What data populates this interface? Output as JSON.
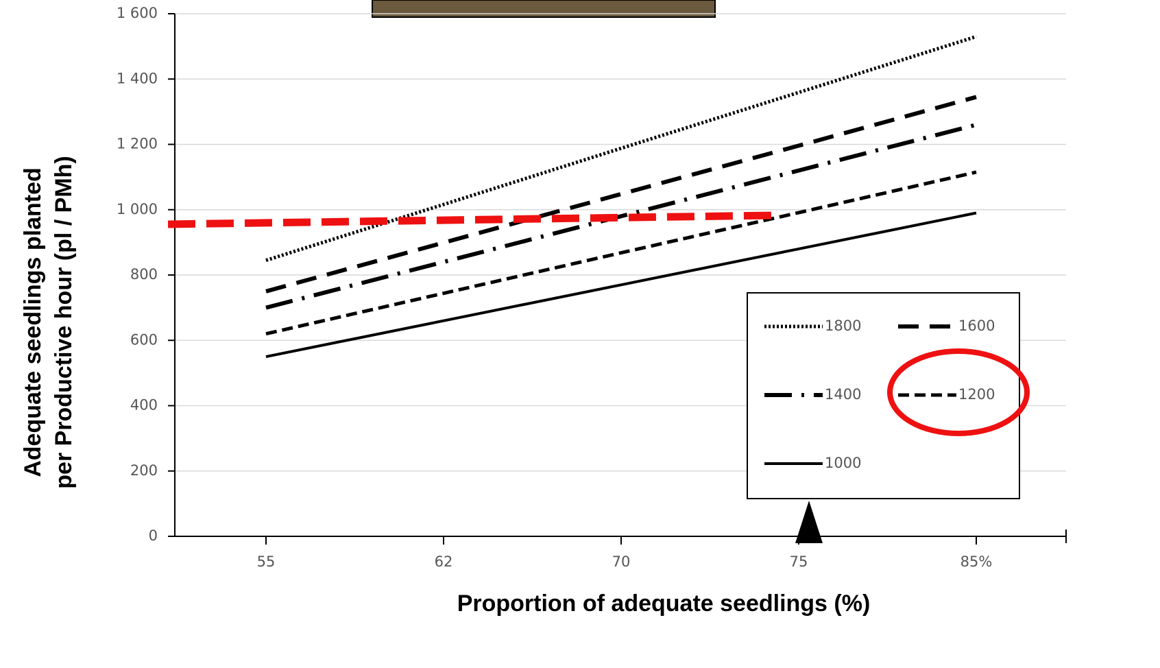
{
  "chart_data": {
    "type": "line",
    "x_label": "Proportion of adequate seedlings (%)",
    "y_label": [
      "Adequate seedlings planted",
      "per Productive hour (pl / PMh)"
    ],
    "categories": [
      "55",
      "62",
      "70",
      "75",
      "85%"
    ],
    "ylim": [
      0,
      1600
    ],
    "yticks": [
      0,
      200,
      400,
      600,
      800,
      {
        "value": 1000,
        "label": "1 000"
      },
      {
        "value": 1200,
        "label": "1 200"
      },
      {
        "value": 1400,
        "label": "1 400"
      },
      {
        "value": 1600,
        "label": "1 600"
      }
    ],
    "grid": true,
    "legend": "lower right",
    "series": [
      {
        "name": "1800",
        "color": "#000000",
        "line_style": "dotted",
        "values": [
          845,
          1016,
          1188,
          1359,
          1530
        ]
      },
      {
        "name": "1600",
        "color": "#000000",
        "line_style": "dashed",
        "values": [
          750,
          899,
          1048,
          1196,
          1345
        ]
      },
      {
        "name": "1400",
        "color": "#000000",
        "line_style": "dashdot",
        "values": [
          700,
          840,
          980,
          1120,
          1260
        ]
      },
      {
        "name": "1200",
        "color": "#000000",
        "line_style": "short-dashed",
        "values": [
          620,
          744,
          868,
          991,
          1115
        ]
      },
      {
        "name": "1000",
        "color": "#000000",
        "line_style": "solid",
        "values": [
          550,
          660,
          770,
          880,
          990
        ]
      }
    ]
  }
}
